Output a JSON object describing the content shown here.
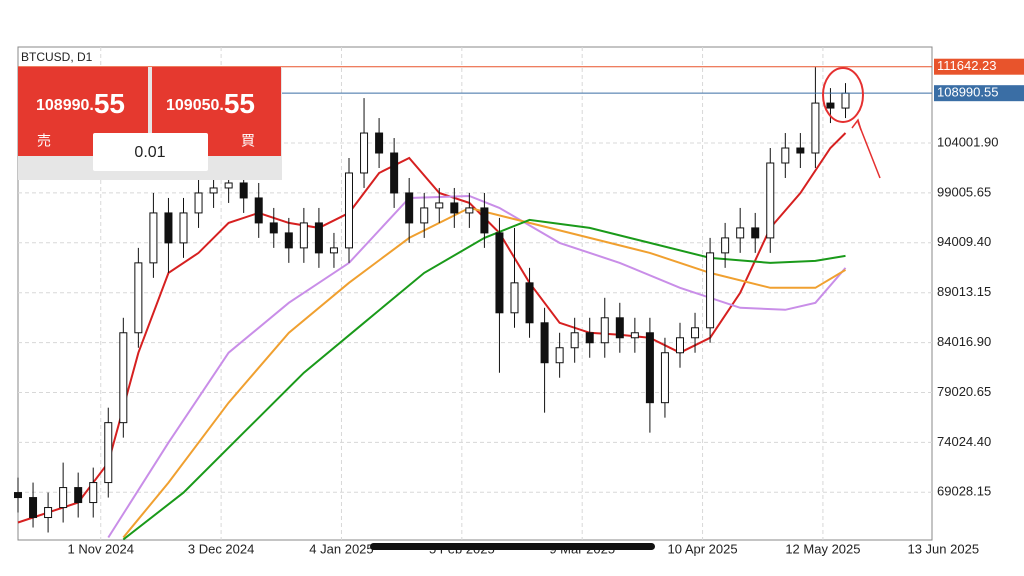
{
  "chart_data": {
    "type": "candlestick",
    "title": "BTCUSD, D1",
    "x": [
      "2024-10-10",
      "2024-10-14",
      "2024-10-18",
      "2024-10-22",
      "2024-10-26",
      "2024-10-30",
      "2024-11-03",
      "2024-11-07",
      "2024-11-11",
      "2024-11-15",
      "2024-11-19",
      "2024-11-23",
      "2024-11-27",
      "2024-12-01",
      "2024-12-05",
      "2024-12-09",
      "2024-12-13",
      "2024-12-17",
      "2024-12-21",
      "2024-12-25",
      "2024-12-29",
      "2025-01-02",
      "2025-01-06",
      "2025-01-10",
      "2025-01-14",
      "2025-01-18",
      "2025-01-22",
      "2025-01-26",
      "2025-01-30",
      "2025-02-03",
      "2025-02-07",
      "2025-02-11",
      "2025-02-15",
      "2025-02-19",
      "2025-02-23",
      "2025-02-27",
      "2025-03-03",
      "2025-03-07",
      "2025-03-11",
      "2025-03-15",
      "2025-03-19",
      "2025-03-23",
      "2025-03-27",
      "2025-03-31",
      "2025-04-04",
      "2025-04-08",
      "2025-04-12",
      "2025-04-16",
      "2025-04-20",
      "2025-04-24",
      "2025-04-28",
      "2025-05-02",
      "2025-05-06",
      "2025-05-10",
      "2025-05-14",
      "2025-05-18"
    ],
    "open": [
      69000,
      68500,
      66500,
      67500,
      69500,
      68000,
      70000,
      76000,
      85000,
      92000,
      97000,
      94000,
      97000,
      99000,
      99500,
      100000,
      98500,
      96000,
      95000,
      93500,
      96000,
      93000,
      93500,
      101000,
      105000,
      103000,
      99000,
      96000,
      97500,
      98000,
      97000,
      97500,
      95000,
      87000,
      90000,
      86000,
      82000,
      83500,
      85000,
      84000,
      86500,
      84500,
      85000,
      78000,
      83000,
      84500,
      85500,
      93000,
      94500,
      95500,
      94500,
      102000,
      103500,
      103000,
      108000,
      107500
    ],
    "high": [
      70500,
      70000,
      69000,
      72000,
      71000,
      71500,
      77500,
      86500,
      93500,
      99000,
      98500,
      98500,
      100500,
      101000,
      101500,
      101500,
      100000,
      97500,
      96500,
      97500,
      97500,
      95000,
      102500,
      108500,
      106500,
      104500,
      100500,
      99000,
      99500,
      99500,
      99000,
      99000,
      96500,
      95500,
      91500,
      87500,
      85000,
      86500,
      86500,
      88500,
      88000,
      86500,
      86500,
      84500,
      86000,
      87000,
      94500,
      96000,
      97500,
      97000,
      103500,
      105000,
      105000,
      111600,
      109500,
      110000
    ],
    "low": [
      67000,
      65500,
      65000,
      66000,
      66500,
      66500,
      68500,
      74500,
      83500,
      90500,
      91000,
      92500,
      95500,
      97500,
      98000,
      97000,
      94500,
      93500,
      92000,
      92000,
      91500,
      91500,
      92000,
      99500,
      101500,
      97500,
      94000,
      94500,
      96000,
      95500,
      95500,
      93500,
      81000,
      85500,
      84500,
      77000,
      80500,
      82000,
      82500,
      82500,
      83000,
      83000,
      75000,
      76500,
      81500,
      83000,
      84000,
      91500,
      93000,
      93000,
      93000,
      100500,
      101500,
      101500,
      106000,
      106500
    ],
    "close": [
      68500,
      66500,
      67500,
      69500,
      68000,
      70000,
      76000,
      85000,
      92000,
      97000,
      94000,
      97000,
      99000,
      99500,
      100000,
      98500,
      96000,
      95000,
      93500,
      96000,
      93000,
      93500,
      101000,
      105000,
      103000,
      99000,
      96000,
      97500,
      98000,
      97000,
      97500,
      95000,
      87000,
      90000,
      86000,
      82000,
      83500,
      85000,
      84000,
      86500,
      84500,
      85000,
      78000,
      83000,
      84500,
      85500,
      93000,
      94500,
      95500,
      94500,
      102000,
      103500,
      103000,
      108000,
      107500,
      108990.55
    ],
    "series": [
      {
        "color": "#d62020",
        "x": [
          "2024-10-10",
          "2024-10-26",
          "2024-11-03",
          "2024-11-11",
          "2024-11-19",
          "2024-11-27",
          "2024-12-05",
          "2024-12-13",
          "2024-12-21",
          "2024-12-29",
          "2025-01-06",
          "2025-01-14",
          "2025-01-22",
          "2025-01-30",
          "2025-02-07",
          "2025-02-15",
          "2025-02-23",
          "2025-03-03",
          "2025-03-11",
          "2025-03-19",
          "2025-03-27",
          "2025-04-04",
          "2025-04-12",
          "2025-04-20",
          "2025-04-28",
          "2025-05-06",
          "2025-05-14",
          "2025-05-18"
        ],
        "values": [
          66000,
          68000,
          72000,
          83000,
          91000,
          93000,
          96000,
          97000,
          96000,
          95500,
          97000,
          101000,
          102500,
          99000,
          98000,
          95000,
          90000,
          86000,
          85000,
          84800,
          84500,
          83000,
          84500,
          89000,
          95500,
          99000,
          103500,
          105000
        ]
      },
      {
        "color": "#c98ee8",
        "x": [
          "2024-11-03",
          "2024-11-19",
          "2024-12-05",
          "2024-12-21",
          "2025-01-06",
          "2025-01-22",
          "2025-02-07",
          "2025-02-15",
          "2025-03-03",
          "2025-03-19",
          "2025-04-04",
          "2025-04-20",
          "2025-05-02",
          "2025-05-10",
          "2025-05-18"
        ],
        "values": [
          64500,
          74000,
          83000,
          88000,
          92000,
          98500,
          98700,
          97500,
          94000,
          92000,
          89500,
          87500,
          87300,
          88000,
          91500
        ]
      },
      {
        "color": "#f0a030",
        "x": [
          "2024-11-07",
          "2024-11-19",
          "2024-12-05",
          "2024-12-21",
          "2025-01-06",
          "2025-01-22",
          "2025-02-07",
          "2025-02-23",
          "2025-03-11",
          "2025-03-27",
          "2025-04-12",
          "2025-04-28",
          "2025-05-10",
          "2025-05-18"
        ],
        "values": [
          64500,
          70000,
          78000,
          85000,
          90000,
          94500,
          97500,
          96000,
          94500,
          93000,
          91000,
          89500,
          89500,
          91300
        ]
      },
      {
        "color": "#1a9a1a",
        "x": [
          "2024-11-07",
          "2024-11-23",
          "2024-12-09",
          "2024-12-25",
          "2025-01-10",
          "2025-01-26",
          "2025-02-11",
          "2025-02-23",
          "2025-03-11",
          "2025-03-27",
          "2025-04-12",
          "2025-04-28",
          "2025-05-10",
          "2025-05-18"
        ],
        "values": [
          64300,
          69000,
          75000,
          81000,
          86000,
          91000,
          94500,
          96300,
          95500,
          94000,
          92500,
          92000,
          92200,
          92700
        ]
      }
    ],
    "price_lines": [
      {
        "value": 111642.23,
        "color": "#e8542c"
      },
      {
        "value": 108990.55,
        "color": "#3a6ea5"
      }
    ],
    "xlim": [
      "2024-10-10",
      "2025-06-10"
    ],
    "xticks": [
      {
        "value": "2024-11-01",
        "label": "1 Nov 2024"
      },
      {
        "value": "2024-12-03",
        "label": "3 Dec 2024"
      },
      {
        "value": "2025-01-04",
        "label": "4 Jan 2025"
      },
      {
        "value": "2025-02-05",
        "label": "5 Feb 2025"
      },
      {
        "value": "2025-03-09",
        "label": "9 Mar 2025"
      },
      {
        "value": "2025-04-10",
        "label": "10 Apr 2025"
      },
      {
        "value": "2025-05-12",
        "label": "12 May 2025"
      },
      {
        "value": "2025-06-13",
        "label": "13 Jun 2025"
      }
    ],
    "ylim": [
      64250,
      113615
    ],
    "yticks": [
      {
        "value": 104001.9,
        "label": "104001.90"
      },
      99005.65,
      {
        "value": 94009.4,
        "label": "94009.40"
      },
      89013.15,
      {
        "value": 84016.9,
        "label": "84016.90"
      },
      79020.65,
      {
        "value": 74024.4,
        "label": "74024.40"
      },
      69028.15
    ],
    "grid": true
  },
  "order_panel": {
    "sell": {
      "price_main": "108990.",
      "price_big": "55",
      "label": "売"
    },
    "buy": {
      "price_main": "109050.",
      "price_big": "55",
      "label": "買"
    },
    "volume": "0.01"
  }
}
